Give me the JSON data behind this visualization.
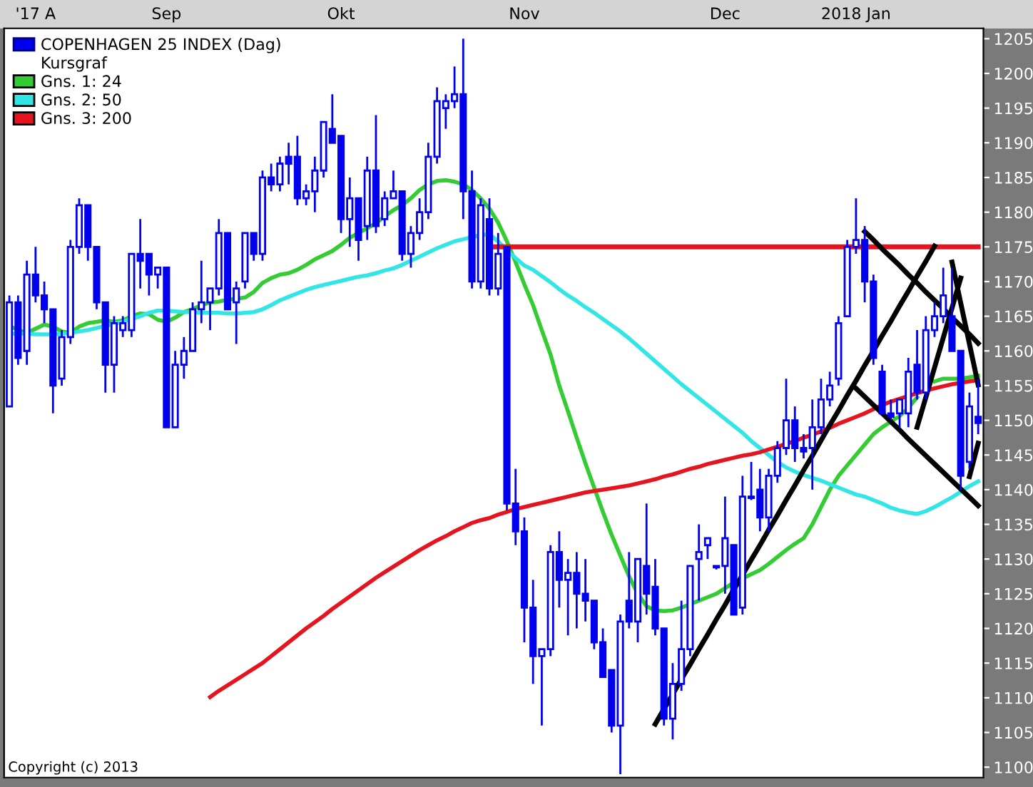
{
  "chart_data": {
    "type": "candlestick",
    "categories": [
      null,
      null,
      null,
      "'17 A",
      null,
      null,
      null,
      null,
      null,
      null,
      null,
      null,
      null,
      null,
      null,
      null,
      null,
      null,
      "Sep",
      null,
      null,
      null,
      null,
      null,
      null,
      null,
      null,
      null,
      null,
      null,
      null,
      null,
      null,
      null,
      null,
      null,
      null,
      null,
      "Okt",
      null,
      null,
      null,
      null,
      null,
      null,
      null,
      null,
      null,
      null,
      null,
      null,
      null,
      null,
      null,
      null,
      null,
      null,
      null,
      null,
      "Nov",
      null,
      null,
      null,
      null,
      null,
      null,
      null,
      null,
      null,
      null,
      null,
      null,
      null,
      null,
      null,
      null,
      null,
      null,
      null,
      null,
      null,
      null,
      "Dec",
      null,
      null,
      null,
      null,
      null,
      null,
      null,
      null,
      null,
      null,
      null,
      null,
      null,
      null,
      "2018 Jan",
      null,
      null,
      null,
      null,
      null,
      null,
      null,
      null,
      null,
      null,
      null,
      null,
      null,
      null
    ],
    "ylim": [
      1098.5,
      1206.5
    ],
    "yticks": [
      1100,
      1105,
      1110,
      1115,
      1120,
      1125,
      1130,
      1135,
      1140,
      1145,
      1150,
      1155,
      1160,
      1165,
      1170,
      1175,
      1180,
      1185,
      1190,
      1195,
      1200,
      1205
    ],
    "grid": false,
    "legend": "top left",
    "annotations": [
      "Kursgraf",
      "Copyright (c) 2013"
    ],
    "series": [
      {
        "name": "COPENHAGEN 25 INDEX (Dag)",
        "color": "#0000ee",
        "ohlc": [
          [
            1152,
            1168,
            1152,
            1167
          ],
          [
            1167,
            1168,
            1158,
            1159
          ],
          [
            1160,
            1173,
            1158,
            1171
          ],
          [
            1171,
            1175,
            1167,
            1168
          ],
          [
            1168,
            1170,
            1164,
            1166
          ],
          [
            1166,
            1166,
            1151,
            1155
          ],
          [
            1156,
            1163,
            1155,
            1162
          ],
          [
            1162,
            1176,
            1161,
            1175
          ],
          [
            1175,
            1182,
            1174,
            1181
          ],
          [
            1181,
            1181,
            1173,
            1175
          ],
          [
            1175,
            1175,
            1166,
            1167
          ],
          [
            1167,
            1167,
            1154,
            1158
          ],
          [
            1158,
            1165,
            1154,
            1164
          ],
          [
            1163,
            1165,
            1162,
            1164
          ],
          [
            1163,
            1174,
            1162,
            1174
          ],
          [
            1174,
            1179,
            1169,
            1173
          ],
          [
            1174,
            1174,
            1168,
            1171
          ],
          [
            1171,
            1172,
            1169,
            1172
          ],
          [
            1172,
            1172,
            1149,
            1149
          ],
          [
            1149,
            1160,
            1149,
            1158
          ],
          [
            1158,
            1162,
            1156,
            1160
          ],
          [
            1160,
            1167,
            1160,
            1166
          ],
          [
            1166,
            1173,
            1164,
            1167
          ],
          [
            1167,
            1169,
            1163,
            1169
          ],
          [
            1169,
            1179,
            1168,
            1177
          ],
          [
            1177,
            1177,
            1166,
            1166
          ],
          [
            1167,
            1170,
            1161,
            1169
          ],
          [
            1170,
            1177,
            1169,
            1177
          ],
          [
            1177,
            1177,
            1173,
            1174
          ],
          [
            1174,
            1186,
            1173,
            1185
          ],
          [
            1185,
            1187,
            1183,
            1184
          ],
          [
            1184,
            1188,
            1183,
            1187
          ],
          [
            1188,
            1190,
            1184,
            1187
          ],
          [
            1188,
            1191,
            1181,
            1182
          ],
          [
            1182,
            1184,
            1181,
            1183
          ],
          [
            1183,
            1188,
            1180,
            1186
          ],
          [
            1186,
            1193,
            1185,
            1193
          ],
          [
            1192,
            1197,
            1190,
            1190
          ],
          [
            1191,
            1191,
            1177,
            1179
          ],
          [
            1179,
            1185,
            1175,
            1182
          ],
          [
            1182,
            1182,
            1173,
            1176
          ],
          [
            1178,
            1188,
            1176,
            1186
          ],
          [
            1186,
            1194,
            1177,
            1178
          ],
          [
            1179,
            1183,
            1178,
            1182
          ],
          [
            1182,
            1186,
            1182,
            1183
          ],
          [
            1183,
            1183,
            1173,
            1174
          ],
          [
            1174,
            1178,
            1172,
            1177
          ],
          [
            1177,
            1182,
            1176,
            1180
          ],
          [
            1180,
            1190,
            1179,
            1188
          ],
          [
            1188,
            1198,
            1187,
            1196
          ],
          [
            1195,
            1197,
            1192,
            1196
          ],
          [
            1196,
            1201,
            1195,
            1197
          ],
          [
            1197,
            1205,
            1179,
            1183
          ],
          [
            1183,
            1186,
            1169,
            1170
          ],
          [
            1170,
            1182,
            1169,
            1181
          ],
          [
            1179,
            1182,
            1168,
            1169
          ],
          [
            1169,
            1177,
            1168,
            1174
          ],
          [
            1175,
            1175,
            1137,
            1138
          ],
          [
            1138,
            1143,
            1132,
            1134
          ],
          [
            1134,
            1136,
            1118,
            1123
          ],
          [
            1123,
            1127,
            1112,
            1116
          ],
          [
            1116,
            1117,
            1106,
            1117
          ],
          [
            1117,
            1132,
            1116,
            1131
          ],
          [
            1131,
            1134,
            1123,
            1127
          ],
          [
            1127,
            1130,
            1119,
            1128
          ],
          [
            1128,
            1131,
            1120,
            1125
          ],
          [
            1125,
            1130,
            1121,
            1124
          ],
          [
            1124,
            1124,
            1117,
            1118
          ],
          [
            1118,
            1120,
            1113,
            1113
          ],
          [
            1114,
            1114,
            1105,
            1106
          ],
          [
            1106,
            1122,
            1099,
            1121
          ],
          [
            1124,
            1131,
            1120,
            1121
          ],
          [
            1121,
            1130,
            1118,
            1130
          ],
          [
            1129,
            1138,
            1122,
            1125
          ],
          [
            1126,
            1130,
            1119,
            1120
          ],
          [
            1120,
            1120,
            1106,
            1107
          ],
          [
            1107,
            1115,
            1104,
            1112
          ],
          [
            1112,
            1124,
            1111,
            1117
          ],
          [
            1117,
            1129,
            1116,
            1129
          ],
          [
            1130,
            1135,
            1124,
            1131
          ],
          [
            1132,
            1133,
            1130,
            1133
          ],
          [
            1129,
            1129,
            1128.5,
            1128.8
          ],
          [
            1129,
            1139,
            1125,
            1133
          ],
          [
            1132,
            1132,
            1122,
            1122
          ],
          [
            1123,
            1142,
            1122,
            1139
          ],
          [
            1139,
            1144,
            1138.5,
            1138.8
          ],
          [
            1140,
            1143,
            1134,
            1136
          ],
          [
            1136,
            1143,
            1134,
            1142
          ],
          [
            1142,
            1147,
            1141,
            1146
          ],
          [
            1146,
            1156,
            1145,
            1150
          ],
          [
            1150,
            1152,
            1144,
            1146
          ],
          [
            1146,
            1148,
            1144.5,
            1145.5
          ],
          [
            1146,
            1153,
            1140,
            1149
          ],
          [
            1149,
            1156,
            1148,
            1153
          ],
          [
            1153,
            1157,
            1152,
            1155
          ],
          [
            1156,
            1165,
            1155,
            1164
          ],
          [
            1165,
            1176,
            1165,
            1175
          ],
          [
            1175,
            1182,
            1174,
            1176
          ],
          [
            1176,
            1178,
            1167,
            1170
          ],
          [
            1170,
            1171,
            1158,
            1159
          ],
          [
            1157,
            1158,
            1151,
            1151
          ],
          [
            1151,
            1153,
            1150,
            1150.5
          ],
          [
            1151,
            1153,
            1149,
            1153
          ],
          [
            1151,
            1159,
            1149,
            1157
          ],
          [
            1158,
            1163,
            1153,
            1154
          ],
          [
            1154,
            1165,
            1153,
            1163
          ],
          [
            1163,
            1167,
            1162,
            1165
          ],
          [
            1165,
            1172,
            1164,
            1168
          ],
          [
            1165,
            1172,
            1160,
            1160
          ],
          [
            1160,
            1160,
            1140,
            1142
          ],
          [
            1144,
            1154,
            1143,
            1152
          ],
          [
            1150.5,
            1156,
            1148,
            1149.6
          ]
        ]
      },
      {
        "type": "line",
        "name": "Gns. 1: 24",
        "color": "#33cc33",
        "values": [
          1163.6,
          1163.0,
          1162.6,
          1163.2,
          1163.8,
          1163.5,
          1162.8,
          1162.6,
          1163.5,
          1164.0,
          1164.2,
          1164.4,
          1164.2,
          1164.4,
          1165.0,
          1165.4,
          1165.3,
          1164.5,
          1164.2,
          1164.8,
          1165.6,
          1166.0,
          1166.6,
          1167.0,
          1167.1,
          1167.4,
          1167.5,
          1167.7,
          1168.5,
          1169.8,
          1170.5,
          1171.0,
          1171.2,
          1171.7,
          1172.4,
          1173.2,
          1173.8,
          1174.4,
          1175.3,
          1176.3,
          1177.0,
          1177.7,
          1178.4,
          1179.4,
          1180.3,
          1181.0,
          1182.0,
          1183.2,
          1184.0,
          1184.5,
          1184.6,
          1184.4,
          1184.0,
          1183.2,
          1182.0,
          1180.5,
          1178.5,
          1175.8,
          1172.8,
          1169.6,
          1166.6,
          1163.0,
          1159.5,
          1155.0,
          1151.3,
          1147.5,
          1143.8,
          1140.3,
          1136.8,
          1133.5,
          1130.5,
          1127.5,
          1125.0,
          1123.2,
          1122.6,
          1122.5,
          1122.6,
          1123.0,
          1123.5,
          1124.0,
          1124.5,
          1125.0,
          1125.8,
          1126.6,
          1127.2,
          1127.8,
          1128.4,
          1129.3,
          1130.3,
          1131.3,
          1132.2,
          1133.0,
          1135.0,
          1137.5,
          1140.0,
          1142.0,
          1143.5,
          1145.0,
          1146.5,
          1148.0,
          1149.0,
          1149.8,
          1150.6,
          1151.8,
          1153.3,
          null,
          1155.6,
          1156.0,
          1156.0,
          1156.0,
          1156.2,
          1156.4
        ]
      },
      {
        "type": "line",
        "name": "Gns. 2: 50",
        "color": "#33e6e6",
        "values": [
          1162.5,
          1162.5,
          1162.5,
          1162.4,
          1162.4,
          1162.4,
          1162.5,
          1162.6,
          1162.8,
          1163.0,
          1163.3,
          1163.6,
          1163.9,
          1164.2,
          1164.6,
          1165.0,
          1165.5,
          1165.8,
          1165.8,
          1165.7,
          1165.6,
          1165.6,
          1165.5,
          1165.5,
          1165.5,
          1165.4,
          1165.4,
          1165.5,
          1165.6,
          1166.0,
          1166.6,
          1167.3,
          1167.8,
          1168.3,
          1168.8,
          1169.2,
          1169.5,
          1169.8,
          1170.1,
          1170.4,
          1170.7,
          1170.9,
          1171.2,
          1171.6,
          1171.9,
          1172.4,
          1173.0,
          1173.6,
          1174.2,
          1174.8,
          1175.3,
          1175.8,
          1176.1,
          1176.4,
          1176.7,
          1176.8,
          1175.8,
          1174.5,
          1173.4,
          1172.3,
          1171.7,
          1170.8,
          1169.9,
          1168.9,
          1168.0,
          1167.2,
          1166.3,
          1165.5,
          1164.6,
          1163.7,
          1162.8,
          1161.8,
          1160.7,
          1159.6,
          1158.5,
          1157.4,
          1156.3,
          1155.2,
          1154.2,
          1153.2,
          1152.2,
          1151.2,
          1150.2,
          1149.2,
          1148.2,
          1147.0,
          1146.0,
          1145.0,
          1144.0,
          1143.2,
          1142.6,
          1142.1,
          1141.7,
          1141.3,
          1140.8,
          1140.3,
          1139.8,
          1139.3,
          1139.0,
          1138.5,
          1138.0,
          1137.4,
          1137.0,
          1136.7,
          1136.5,
          1136.9,
          1137.5,
          1138.2,
          1138.9,
          1139.7,
          1140.5,
          1141.2
        ]
      },
      {
        "type": "line",
        "name": "Gns. 3: 200",
        "color": "#e6141e",
        "values": [
          null,
          null,
          null,
          null,
          null,
          null,
          null,
          null,
          null,
          null,
          null,
          null,
          null,
          null,
          null,
          null,
          null,
          null,
          null,
          null,
          null,
          null,
          null,
          1110.1,
          1111.0,
          1111.8,
          1112.6,
          1113.4,
          1114.2,
          1115.0,
          1116.0,
          1117.0,
          1118.0,
          1119.0,
          1120.0,
          1120.9,
          1121.8,
          1122.8,
          1123.7,
          1124.6,
          1125.5,
          1126.4,
          1127.3,
          1128.1,
          1128.9,
          1129.7,
          1130.5,
          1131.3,
          1132.0,
          1132.7,
          1133.3,
          1134.0,
          1134.6,
          1135.2,
          1135.6,
          1135.9,
          1136.4,
          1136.8,
          1137.2,
          1137.5,
          1137.8,
          1138.1,
          1138.4,
          1138.7,
          1139.0,
          1139.3,
          1139.6,
          1139.8,
          1140.0,
          1140.2,
          1140.4,
          1140.6,
          1140.9,
          1141.2,
          1141.5,
          1141.9,
          1142.2,
          1142.6,
          1143.0,
          1143.3,
          1143.7,
          1144.0,
          1144.3,
          1144.6,
          1144.9,
          1145.1,
          1145.4,
          1145.8,
          1146.2,
          1146.6,
          1147.0,
          1147.5,
          1147.9,
          1148.4,
          1148.9,
          1149.5,
          1150.0,
          1150.5,
          1151.0,
          1151.6,
          1152.2,
          1152.7,
          1153.1,
          1153.5,
          1153.9,
          1154.3,
          1154.6,
          1154.9,
          1155.2,
          1155.4,
          1155.6,
          1155.8
        ]
      },
      {
        "type": "line",
        "color": "#e6141e",
        "values": [
          null,
          null,
          null,
          null,
          null,
          null,
          null,
          null,
          null,
          null,
          null,
          null,
          null,
          null,
          null,
          null,
          null,
          null,
          null,
          null,
          null,
          null,
          null,
          null,
          null,
          null,
          null,
          null,
          null,
          null,
          null,
          null,
          null,
          null,
          null,
          null,
          null,
          null,
          null,
          null,
          null,
          null,
          null,
          null,
          null,
          null,
          null,
          null,
          null,
          null,
          null,
          null,
          null,
          null,
          null,
          1175,
          1175,
          1175,
          1175,
          1175,
          1175,
          1175,
          1175,
          1175,
          1175,
          1175,
          1175,
          1175,
          1175,
          1175,
          1175,
          1175,
          1175,
          1175,
          1175,
          1175,
          1175,
          1175,
          1175,
          1175,
          1175,
          1175,
          1175,
          1175,
          1175,
          1175,
          1175,
          1175,
          1175,
          1175,
          1175,
          1175,
          1175,
          1175,
          1175,
          1175,
          1175,
          1175,
          1175,
          1175,
          1175,
          1175,
          1175,
          1175,
          1175,
          1175,
          1175,
          1175,
          1175,
          1175,
          1175,
          1175
        ]
      },
      {
        "type": "line",
        "color": "#000000",
        "values": [
          null,
          null,
          null,
          null,
          null,
          null,
          null,
          null,
          null,
          null,
          null,
          null,
          null,
          null,
          null,
          null,
          null,
          null,
          null,
          null,
          null,
          null,
          null,
          null,
          null,
          null,
          null,
          null,
          null,
          null,
          null,
          null,
          null,
          null,
          null,
          null,
          null,
          null,
          null,
          null,
          null,
          null,
          null,
          null,
          null,
          null,
          null,
          null,
          null,
          null,
          null,
          null,
          null,
          null,
          null,
          null,
          null,
          null,
          null,
          null,
          null,
          null,
          null,
          null,
          null,
          null,
          null,
          null,
          null,
          null,
          null,
          null,
          null,
          null,
          1106.2,
          1108.4,
          1110.5,
          1112.7,
          1114.8,
          1117.0,
          1119.1,
          1121.3,
          1123.4,
          1125.6,
          1127.7,
          1129.9,
          1132.0,
          1134.2,
          1136.3,
          1138.5,
          1140.6,
          1142.8,
          1144.9,
          1147.1,
          1149.3,
          1151.4,
          1153.6,
          1155.7,
          1157.9,
          1160.0,
          1162.2,
          1164.3,
          1166.5,
          1168.6,
          1170.8,
          1172.9,
          1175.1,
          null,
          null,
          null,
          null,
          null
        ]
      },
      {
        "type": "line",
        "color": "#000000",
        "values": [
          null,
          null,
          null,
          null,
          null,
          null,
          null,
          null,
          null,
          null,
          null,
          null,
          null,
          null,
          null,
          null,
          null,
          null,
          null,
          null,
          null,
          null,
          null,
          null,
          null,
          null,
          null,
          null,
          null,
          null,
          null,
          null,
          null,
          null,
          null,
          null,
          null,
          null,
          null,
          null,
          null,
          null,
          null,
          null,
          null,
          null,
          null,
          null,
          null,
          null,
          null,
          null,
          null,
          null,
          null,
          null,
          null,
          null,
          null,
          null,
          null,
          null,
          null,
          null,
          null,
          null,
          null,
          null,
          null,
          null,
          null,
          null,
          null,
          null,
          null,
          null,
          null,
          null,
          null,
          null,
          null,
          null,
          null,
          null,
          null,
          null,
          null,
          null,
          null,
          null,
          null,
          null,
          null,
          null,
          null,
          null,
          null,
          null,
          1177.2,
          1176.0,
          1174.7,
          1173.5,
          1172.3,
          1171.0,
          1169.8,
          1168.5,
          1167.3,
          1166.1,
          1164.8,
          1163.6,
          1162.4,
          1161.1
        ]
      },
      {
        "type": "line",
        "color": "#000000",
        "values": [
          null,
          null,
          null,
          null,
          null,
          null,
          null,
          null,
          null,
          null,
          null,
          null,
          null,
          null,
          null,
          null,
          null,
          null,
          null,
          null,
          null,
          null,
          null,
          null,
          null,
          null,
          null,
          null,
          null,
          null,
          null,
          null,
          null,
          null,
          null,
          null,
          null,
          null,
          null,
          null,
          null,
          null,
          null,
          null,
          null,
          null,
          null,
          null,
          null,
          null,
          null,
          null,
          null,
          null,
          null,
          null,
          null,
          null,
          null,
          null,
          null,
          null,
          null,
          null,
          null,
          null,
          null,
          null,
          null,
          null,
          null,
          null,
          null,
          null,
          null,
          null,
          null,
          null,
          null,
          null,
          null,
          null,
          null,
          null,
          null,
          null,
          null,
          null,
          null,
          null,
          null,
          null,
          null,
          null,
          null,
          null,
          null,
          1154.6,
          1153.4,
          1152.2,
          1151.0,
          1149.8,
          1148.6,
          1147.3,
          1146.1,
          1144.9,
          1143.7,
          1142.5,
          1141.3,
          1140.1,
          1138.9,
          1137.7
        ]
      },
      {
        "type": "line",
        "color": "#000000",
        "values": [
          null,
          null,
          null,
          null,
          null,
          null,
          null,
          null,
          null,
          null,
          null,
          null,
          null,
          null,
          null,
          null,
          null,
          null,
          null,
          null,
          null,
          null,
          null,
          null,
          null,
          null,
          null,
          null,
          null,
          null,
          null,
          null,
          null,
          null,
          null,
          null,
          null,
          null,
          null,
          null,
          null,
          null,
          null,
          null,
          null,
          null,
          null,
          null,
          null,
          null,
          null,
          null,
          null,
          null,
          null,
          null,
          null,
          null,
          null,
          null,
          null,
          null,
          null,
          null,
          null,
          null,
          null,
          null,
          null,
          null,
          null,
          null,
          null,
          null,
          null,
          null,
          null,
          null,
          null,
          null,
          null,
          null,
          null,
          null,
          null,
          null,
          null,
          null,
          null,
          null,
          null,
          null,
          null,
          null,
          null,
          null,
          null,
          null,
          null,
          null,
          null,
          null,
          null,
          null,
          1149.0,
          1153.3,
          1157.6,
          1161.9,
          1166.2,
          1170.5,
          null,
          null
        ]
      },
      {
        "type": "line",
        "color": "#000000",
        "values": [
          null,
          null,
          null,
          null,
          null,
          null,
          null,
          null,
          null,
          null,
          null,
          null,
          null,
          null,
          null,
          null,
          null,
          null,
          null,
          null,
          null,
          null,
          null,
          null,
          null,
          null,
          null,
          null,
          null,
          null,
          null,
          null,
          null,
          null,
          null,
          null,
          null,
          null,
          null,
          null,
          null,
          null,
          null,
          null,
          null,
          null,
          null,
          null,
          null,
          null,
          null,
          null,
          null,
          null,
          null,
          null,
          null,
          null,
          null,
          null,
          null,
          null,
          null,
          null,
          null,
          null,
          null,
          null,
          null,
          null,
          null,
          null,
          null,
          null,
          null,
          null,
          null,
          null,
          null,
          null,
          null,
          null,
          null,
          null,
          null,
          null,
          null,
          null,
          null,
          null,
          null,
          null,
          null,
          null,
          null,
          null,
          null,
          null,
          null,
          null,
          null,
          null,
          null,
          null,
          null,
          null,
          null,
          null,
          1172.8,
          1166.9,
          1161.0,
          1155.1
        ]
      },
      {
        "type": "line",
        "color": "#000000",
        "values": [
          null,
          null,
          null,
          null,
          null,
          null,
          null,
          null,
          null,
          null,
          null,
          null,
          null,
          null,
          null,
          null,
          null,
          null,
          null,
          null,
          null,
          null,
          null,
          null,
          null,
          null,
          null,
          null,
          null,
          null,
          null,
          null,
          null,
          null,
          null,
          null,
          null,
          null,
          null,
          null,
          null,
          null,
          null,
          null,
          null,
          null,
          null,
          null,
          null,
          null,
          null,
          null,
          null,
          null,
          null,
          null,
          null,
          null,
          null,
          null,
          null,
          null,
          null,
          null,
          null,
          null,
          null,
          null,
          null,
          null,
          null,
          null,
          null,
          null,
          null,
          null,
          null,
          null,
          null,
          null,
          null,
          null,
          null,
          null,
          null,
          null,
          null,
          null,
          null,
          null,
          null,
          null,
          null,
          null,
          null,
          null,
          null,
          null,
          null,
          null,
          null,
          null,
          null,
          null,
          null,
          null,
          null,
          null,
          null,
          null,
          1141.9,
          1146.7
        ]
      }
    ]
  }
}
